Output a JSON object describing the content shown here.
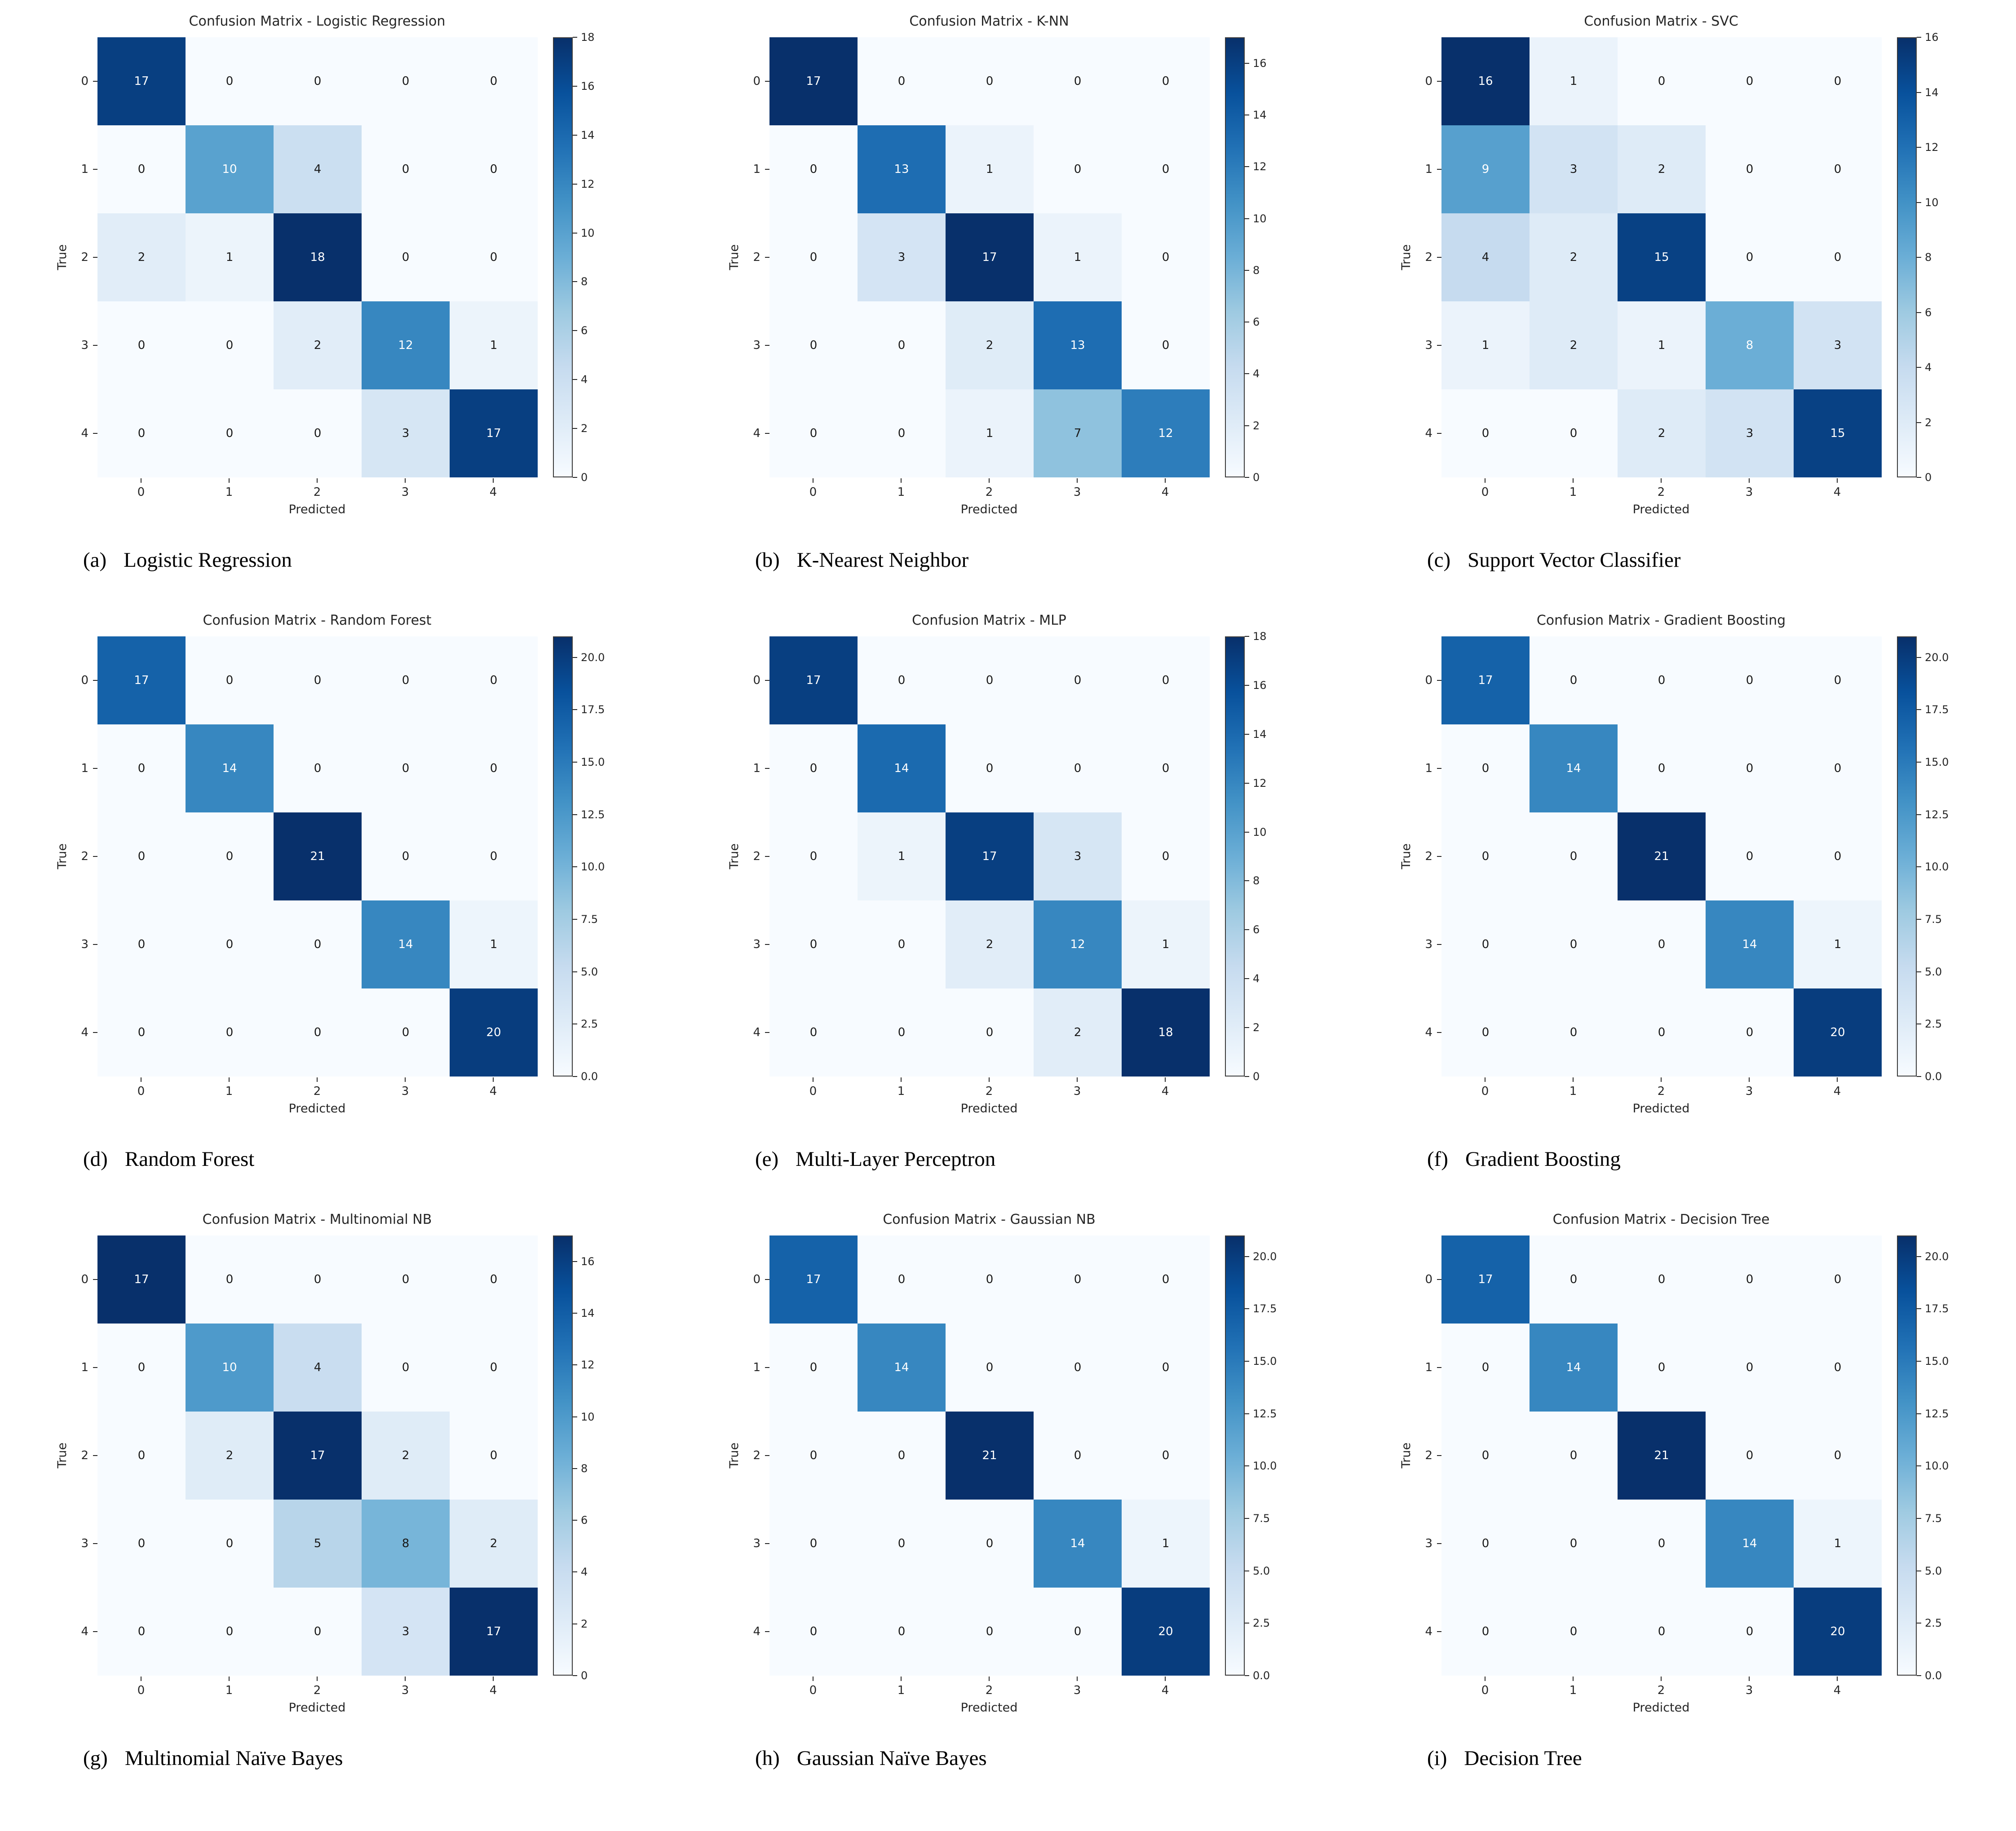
{
  "figure": {
    "type": "confusion-matrix-grid",
    "colormap": {
      "name": "Blues",
      "anchors": [
        "#f7fbff",
        "#deebf7",
        "#c6dbef",
        "#9ecae1",
        "#6baed6",
        "#4292c6",
        "#2171b5",
        "#08519c",
        "#08306b"
      ]
    },
    "text_colors": {
      "light": "#ffffff",
      "dark": "#1a1a1a"
    },
    "background": "#ffffff"
  },
  "chart_data": [
    {
      "type": "heatmap",
      "id": "a",
      "title": "Confusion Matrix - Logistic Regression",
      "caption": {
        "label": "(a)",
        "text": "Logistic Regression"
      },
      "xlabel": "Predicted",
      "ylabel": "True",
      "x_tick_labels": [
        "0",
        "1",
        "2",
        "3",
        "4"
      ],
      "y_tick_labels": [
        "0",
        "1",
        "2",
        "3",
        "4"
      ],
      "matrix": [
        [
          17,
          0,
          0,
          0,
          0
        ],
        [
          0,
          10,
          4,
          0,
          0
        ],
        [
          2,
          1,
          18,
          0,
          0
        ],
        [
          0,
          0,
          2,
          12,
          1
        ],
        [
          0,
          0,
          0,
          3,
          17
        ]
      ],
      "vmin": 0,
      "vmax": 18,
      "colorbar_ticks": [
        0,
        2,
        4,
        6,
        8,
        10,
        12,
        14,
        16,
        18
      ],
      "colorbar_tick_labels": [
        "0",
        "2",
        "4",
        "6",
        "8",
        "10",
        "12",
        "14",
        "16",
        "18"
      ]
    },
    {
      "type": "heatmap",
      "id": "b",
      "title": "Confusion Matrix - K-NN",
      "caption": {
        "label": "(b)",
        "text": "K-Nearest Neighbor"
      },
      "xlabel": "Predicted",
      "ylabel": "True",
      "x_tick_labels": [
        "0",
        "1",
        "2",
        "3",
        "4"
      ],
      "y_tick_labels": [
        "0",
        "1",
        "2",
        "3",
        "4"
      ],
      "matrix": [
        [
          17,
          0,
          0,
          0,
          0
        ],
        [
          0,
          13,
          1,
          0,
          0
        ],
        [
          0,
          3,
          17,
          1,
          0
        ],
        [
          0,
          0,
          2,
          13,
          0
        ],
        [
          0,
          0,
          1,
          7,
          12
        ]
      ],
      "vmin": 0,
      "vmax": 17,
      "colorbar_ticks": [
        0,
        2,
        4,
        6,
        8,
        10,
        12,
        14,
        16
      ],
      "colorbar_tick_labels": [
        "0",
        "2",
        "4",
        "6",
        "8",
        "10",
        "12",
        "14",
        "16"
      ]
    },
    {
      "type": "heatmap",
      "id": "c",
      "title": "Confusion Matrix - SVC",
      "caption": {
        "label": "(c)",
        "text": "Support Vector Classifier"
      },
      "xlabel": "Predicted",
      "ylabel": "True",
      "x_tick_labels": [
        "0",
        "1",
        "2",
        "3",
        "4"
      ],
      "y_tick_labels": [
        "0",
        "1",
        "2",
        "3",
        "4"
      ],
      "matrix": [
        [
          16,
          1,
          0,
          0,
          0
        ],
        [
          9,
          3,
          2,
          0,
          0
        ],
        [
          4,
          2,
          15,
          0,
          0
        ],
        [
          1,
          2,
          1,
          8,
          3
        ],
        [
          0,
          0,
          2,
          3,
          15
        ]
      ],
      "vmin": 0,
      "vmax": 16,
      "colorbar_ticks": [
        0,
        2,
        4,
        6,
        8,
        10,
        12,
        14,
        16
      ],
      "colorbar_tick_labels": [
        "0",
        "2",
        "4",
        "6",
        "8",
        "10",
        "12",
        "14",
        "16"
      ]
    },
    {
      "type": "heatmap",
      "id": "d",
      "title": "Confusion Matrix - Random Forest",
      "caption": {
        "label": "(d)",
        "text": "Random Forest"
      },
      "xlabel": "Predicted",
      "ylabel": "True",
      "x_tick_labels": [
        "0",
        "1",
        "2",
        "3",
        "4"
      ],
      "y_tick_labels": [
        "0",
        "1",
        "2",
        "3",
        "4"
      ],
      "matrix": [
        [
          17,
          0,
          0,
          0,
          0
        ],
        [
          0,
          14,
          0,
          0,
          0
        ],
        [
          0,
          0,
          21,
          0,
          0
        ],
        [
          0,
          0,
          0,
          14,
          1
        ],
        [
          0,
          0,
          0,
          0,
          20
        ]
      ],
      "vmin": 0,
      "vmax": 21,
      "colorbar_ticks": [
        0,
        2.5,
        5,
        7.5,
        10,
        12.5,
        15,
        17.5,
        20
      ],
      "colorbar_tick_labels": [
        "0.0",
        "2.5",
        "5.0",
        "7.5",
        "10.0",
        "12.5",
        "15.0",
        "17.5",
        "20.0"
      ]
    },
    {
      "type": "heatmap",
      "id": "e",
      "title": "Confusion Matrix - MLP",
      "caption": {
        "label": "(e)",
        "text": "Multi-Layer Perceptron"
      },
      "xlabel": "Predicted",
      "ylabel": "True",
      "x_tick_labels": [
        "0",
        "1",
        "2",
        "3",
        "4"
      ],
      "y_tick_labels": [
        "0",
        "1",
        "2",
        "3",
        "4"
      ],
      "matrix": [
        [
          17,
          0,
          0,
          0,
          0
        ],
        [
          0,
          14,
          0,
          0,
          0
        ],
        [
          0,
          1,
          17,
          3,
          0
        ],
        [
          0,
          0,
          2,
          12,
          1
        ],
        [
          0,
          0,
          0,
          2,
          18
        ]
      ],
      "vmin": 0,
      "vmax": 18,
      "colorbar_ticks": [
        0,
        2,
        4,
        6,
        8,
        10,
        12,
        14,
        16,
        18
      ],
      "colorbar_tick_labels": [
        "0",
        "2",
        "4",
        "6",
        "8",
        "10",
        "12",
        "14",
        "16",
        "18"
      ]
    },
    {
      "type": "heatmap",
      "id": "f",
      "title": "Confusion Matrix - Gradient Boosting",
      "caption": {
        "label": "(f)",
        "text": "Gradient Boosting"
      },
      "xlabel": "Predicted",
      "ylabel": "True",
      "x_tick_labels": [
        "0",
        "1",
        "2",
        "3",
        "4"
      ],
      "y_tick_labels": [
        "0",
        "1",
        "2",
        "3",
        "4"
      ],
      "matrix": [
        [
          17,
          0,
          0,
          0,
          0
        ],
        [
          0,
          14,
          0,
          0,
          0
        ],
        [
          0,
          0,
          21,
          0,
          0
        ],
        [
          0,
          0,
          0,
          14,
          1
        ],
        [
          0,
          0,
          0,
          0,
          20
        ]
      ],
      "vmin": 0,
      "vmax": 21,
      "colorbar_ticks": [
        0,
        2.5,
        5,
        7.5,
        10,
        12.5,
        15,
        17.5,
        20
      ],
      "colorbar_tick_labels": [
        "0.0",
        "2.5",
        "5.0",
        "7.5",
        "10.0",
        "12.5",
        "15.0",
        "17.5",
        "20.0"
      ]
    },
    {
      "type": "heatmap",
      "id": "g",
      "title": "Confusion Matrix - Multinomial NB",
      "caption": {
        "label": "(g)",
        "text": "Multinomial Naïve Bayes"
      },
      "xlabel": "Predicted",
      "ylabel": "True",
      "x_tick_labels": [
        "0",
        "1",
        "2",
        "3",
        "4"
      ],
      "y_tick_labels": [
        "0",
        "1",
        "2",
        "3",
        "4"
      ],
      "matrix": [
        [
          17,
          0,
          0,
          0,
          0
        ],
        [
          0,
          10,
          4,
          0,
          0
        ],
        [
          0,
          2,
          17,
          2,
          0
        ],
        [
          0,
          0,
          5,
          8,
          2
        ],
        [
          0,
          0,
          0,
          3,
          17
        ]
      ],
      "vmin": 0,
      "vmax": 17,
      "colorbar_ticks": [
        0,
        2,
        4,
        6,
        8,
        10,
        12,
        14,
        16
      ],
      "colorbar_tick_labels": [
        "0",
        "2",
        "4",
        "6",
        "8",
        "10",
        "12",
        "14",
        "16"
      ]
    },
    {
      "type": "heatmap",
      "id": "h",
      "title": "Confusion Matrix - Gaussian NB",
      "caption": {
        "label": "(h)",
        "text": "Gaussian Naïve Bayes"
      },
      "xlabel": "Predicted",
      "ylabel": "True",
      "x_tick_labels": [
        "0",
        "1",
        "2",
        "3",
        "4"
      ],
      "y_tick_labels": [
        "0",
        "1",
        "2",
        "3",
        "4"
      ],
      "matrix": [
        [
          17,
          0,
          0,
          0,
          0
        ],
        [
          0,
          14,
          0,
          0,
          0
        ],
        [
          0,
          0,
          21,
          0,
          0
        ],
        [
          0,
          0,
          0,
          14,
          1
        ],
        [
          0,
          0,
          0,
          0,
          20
        ]
      ],
      "vmin": 0,
      "vmax": 21,
      "colorbar_ticks": [
        0,
        2.5,
        5,
        7.5,
        10,
        12.5,
        15,
        17.5,
        20
      ],
      "colorbar_tick_labels": [
        "0.0",
        "2.5",
        "5.0",
        "7.5",
        "10.0",
        "12.5",
        "15.0",
        "17.5",
        "20.0"
      ]
    },
    {
      "type": "heatmap",
      "id": "i",
      "title": "Confusion Matrix - Decision Tree",
      "caption": {
        "label": "(i)",
        "text": "Decision Tree"
      },
      "xlabel": "Predicted",
      "ylabel": "True",
      "x_tick_labels": [
        "0",
        "1",
        "2",
        "3",
        "4"
      ],
      "y_tick_labels": [
        "0",
        "1",
        "2",
        "3",
        "4"
      ],
      "matrix": [
        [
          17,
          0,
          0,
          0,
          0
        ],
        [
          0,
          14,
          0,
          0,
          0
        ],
        [
          0,
          0,
          21,
          0,
          0
        ],
        [
          0,
          0,
          0,
          14,
          1
        ],
        [
          0,
          0,
          0,
          0,
          20
        ]
      ],
      "vmin": 0,
      "vmax": 21,
      "colorbar_ticks": [
        0,
        2.5,
        5,
        7.5,
        10,
        12.5,
        15,
        17.5,
        20
      ],
      "colorbar_tick_labels": [
        "0.0",
        "2.5",
        "5.0",
        "7.5",
        "10.0",
        "12.5",
        "15.0",
        "17.5",
        "20.0"
      ]
    }
  ]
}
